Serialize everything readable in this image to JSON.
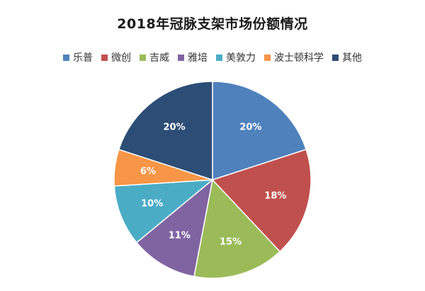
{
  "chart_data": {
    "type": "pie",
    "title": "2018年冠脉支架市场份额情况",
    "legend_position": "top",
    "slices": [
      {
        "name": "乐普",
        "value": 20,
        "label": "20%",
        "color": "#4F81BD"
      },
      {
        "name": "微创",
        "value": 18,
        "label": "18%",
        "color": "#C0504D"
      },
      {
        "name": "吉威",
        "value": 15,
        "label": "15%",
        "color": "#9BBB59"
      },
      {
        "name": "雅培",
        "value": 11,
        "label": "11%",
        "color": "#8064A2"
      },
      {
        "name": "美敦力",
        "value": 10,
        "label": "10%",
        "color": "#4BACC6"
      },
      {
        "name": "波士顿科学",
        "value": 6,
        "label": "6%",
        "color": "#F79646"
      },
      {
        "name": "其他",
        "value": 20,
        "label": "20%",
        "color": "#2C4D75"
      }
    ]
  }
}
